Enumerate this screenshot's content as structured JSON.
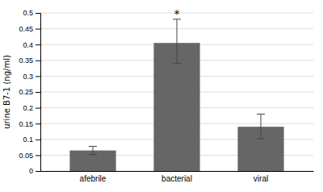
{
  "chart_data": {
    "type": "bar",
    "categories": [
      "afebrile",
      "bacterial",
      "viral"
    ],
    "values": [
      0.065,
      0.405,
      0.14
    ],
    "errors_upper": [
      0.013,
      0.075,
      0.04
    ],
    "errors_lower": [
      0.013,
      0.065,
      0.038
    ],
    "color": "#666666",
    "ylabel": "urine B7-1 (ng/ml)",
    "ylim": [
      0,
      0.5
    ],
    "yticks": [
      0,
      0.05,
      0.1,
      0.15,
      0.2,
      0.25,
      0.3,
      0.35,
      0.4,
      0.45,
      0.5
    ],
    "annotations": [
      {
        "text": "*",
        "category": "bacterial"
      }
    ],
    "grid": true
  }
}
